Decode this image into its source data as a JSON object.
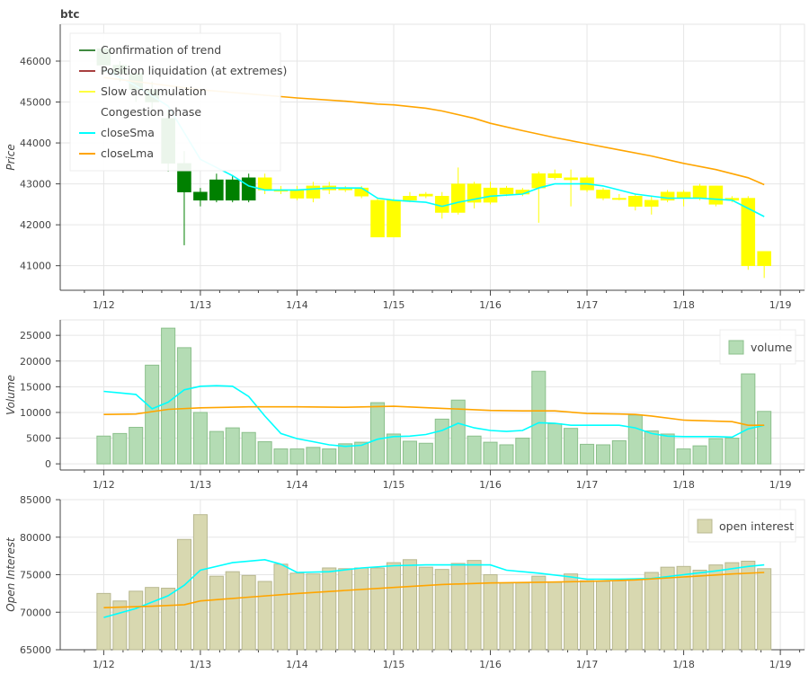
{
  "chart_data": [
    {
      "type": "candlestick",
      "title": "btc",
      "ylabel": "Price",
      "ylim": [
        40400,
        46900
      ],
      "yticks": [
        41000,
        42000,
        43000,
        44000,
        45000,
        46000
      ],
      "xlim": [
        11.55,
        19.25
      ],
      "xticks": [
        12,
        13,
        14,
        15,
        16,
        17,
        18,
        19
      ],
      "xtick_labels": [
        "1/12",
        "1/13",
        "1/14",
        "1/15",
        "1/16",
        "1/17",
        "1/18",
        "1/19"
      ],
      "legend": [
        "Confirmation of trend",
        "Position liquidation (at extremes)",
        "Slow accumulation",
        "Congestion phase",
        "closeSma",
        "closeLma"
      ],
      "legend_colors": [
        "#006400",
        "#8b0000",
        "#ffff00",
        "#ffffff",
        "#00ffff",
        "#ffa500"
      ],
      "legend_placement": "top-left",
      "candle_x": [
        12.0,
        12.167,
        12.333,
        12.5,
        12.667,
        12.833,
        13.0,
        13.167,
        13.333,
        13.5,
        13.667,
        13.833,
        14.0,
        14.167,
        14.333,
        14.5,
        14.667,
        14.833,
        15.0,
        15.167,
        15.333,
        15.5,
        15.667,
        15.833,
        16.0,
        16.167,
        16.333,
        16.5,
        16.667,
        16.833,
        17.0,
        17.167,
        17.333,
        17.5,
        17.667,
        17.833,
        18.0,
        18.167,
        18.333,
        18.5,
        18.667,
        18.833
      ],
      "candles": [
        {
          "open": 45900,
          "close": 46300,
          "high": 46400,
          "low": 45700,
          "phase": "Confirmation of trend"
        },
        {
          "open": 45700,
          "close": 45900,
          "high": 46000,
          "low": 45500,
          "phase": "Confirmation of trend"
        },
        {
          "open": 45300,
          "close": 45700,
          "high": 45800,
          "low": 45000,
          "phase": "Confirmation of trend"
        },
        {
          "open": 45000,
          "close": 45300,
          "high": 45500,
          "low": 44800,
          "phase": "Confirmation of trend"
        },
        {
          "open": 43500,
          "close": 44600,
          "high": 44800,
          "low": 43300,
          "phase": "Confirmation of trend"
        },
        {
          "open": 43500,
          "close": 42800,
          "high": 43800,
          "low": 41500,
          "phase": "Confirmation of trend"
        },
        {
          "open": 42800,
          "close": 42600,
          "high": 42900,
          "low": 42450,
          "phase": "Confirmation of trend"
        },
        {
          "open": 42600,
          "close": 43100,
          "high": 43250,
          "low": 42550,
          "phase": "Confirmation of trend"
        },
        {
          "open": 43100,
          "close": 42600,
          "high": 43200,
          "low": 42550,
          "phase": "Confirmation of trend"
        },
        {
          "open": 42600,
          "close": 43150,
          "high": 43250,
          "low": 42550,
          "phase": "Confirmation of trend"
        },
        {
          "open": 43150,
          "close": 42850,
          "high": 43250,
          "low": 42750,
          "phase": "Slow accumulation"
        },
        {
          "open": 42850,
          "close": 42850,
          "high": 42950,
          "low": 42750,
          "phase": "Slow accumulation"
        },
        {
          "open": 42850,
          "close": 42650,
          "high": 42950,
          "low": 42600,
          "phase": "Slow accumulation"
        },
        {
          "open": 42650,
          "close": 42950,
          "high": 43050,
          "low": 42550,
          "phase": "Slow accumulation"
        },
        {
          "open": 42950,
          "close": 42850,
          "high": 43050,
          "low": 42750,
          "phase": "Slow accumulation"
        },
        {
          "open": 42850,
          "close": 42900,
          "high": 42950,
          "low": 42800,
          "phase": "Slow accumulation"
        },
        {
          "open": 42900,
          "close": 42700,
          "high": 42950,
          "low": 42650,
          "phase": "Slow accumulation"
        },
        {
          "open": 42600,
          "close": 41700,
          "high": 42650,
          "low": 41700,
          "phase": "Slow accumulation"
        },
        {
          "open": 41700,
          "close": 42600,
          "high": 42650,
          "low": 41700,
          "phase": "Slow accumulation"
        },
        {
          "open": 42600,
          "close": 42700,
          "high": 42800,
          "low": 42550,
          "phase": "Slow accumulation"
        },
        {
          "open": 42700,
          "close": 42750,
          "high": 42800,
          "low": 42650,
          "phase": "Slow accumulation"
        },
        {
          "open": 42700,
          "close": 42300,
          "high": 42800,
          "low": 42150,
          "phase": "Slow accumulation"
        },
        {
          "open": 42300,
          "close": 43000,
          "high": 43400,
          "low": 42250,
          "phase": "Slow accumulation"
        },
        {
          "open": 43000,
          "close": 42550,
          "high": 43050,
          "low": 42400,
          "phase": "Slow accumulation"
        },
        {
          "open": 42550,
          "close": 42900,
          "high": 43050,
          "low": 42500,
          "phase": "Slow accumulation"
        },
        {
          "open": 42900,
          "close": 42750,
          "high": 42950,
          "low": 42700,
          "phase": "Slow accumulation"
        },
        {
          "open": 42750,
          "close": 42850,
          "high": 42900,
          "low": 42700,
          "phase": "Slow accumulation"
        },
        {
          "open": 42900,
          "close": 43250,
          "high": 43300,
          "low": 42050,
          "phase": "Slow accumulation"
        },
        {
          "open": 43250,
          "close": 43150,
          "high": 43350,
          "low": 43100,
          "phase": "Slow accumulation"
        },
        {
          "open": 43150,
          "close": 43100,
          "high": 43350,
          "low": 42450,
          "phase": "Slow accumulation"
        },
        {
          "open": 43150,
          "close": 42850,
          "high": 43200,
          "low": 42800,
          "phase": "Slow accumulation"
        },
        {
          "open": 42850,
          "close": 42650,
          "high": 42900,
          "low": 42600,
          "phase": "Slow accumulation"
        },
        {
          "open": 42650,
          "close": 42650,
          "high": 42750,
          "low": 42600,
          "phase": "Slow accumulation"
        },
        {
          "open": 42700,
          "close": 42450,
          "high": 42750,
          "low": 42350,
          "phase": "Slow accumulation"
        },
        {
          "open": 42450,
          "close": 42600,
          "high": 42700,
          "low": 42250,
          "phase": "Slow accumulation"
        },
        {
          "open": 42600,
          "close": 42800,
          "high": 42850,
          "low": 42550,
          "phase": "Slow accumulation"
        },
        {
          "open": 42800,
          "close": 42650,
          "high": 42850,
          "low": 42450,
          "phase": "Slow accumulation"
        },
        {
          "open": 42650,
          "close": 42950,
          "high": 43000,
          "low": 42600,
          "phase": "Slow accumulation"
        },
        {
          "open": 42950,
          "close": 42500,
          "high": 42950,
          "low": 42450,
          "phase": "Slow accumulation"
        },
        {
          "open": 42600,
          "close": 42650,
          "high": 42700,
          "low": 42550,
          "phase": "Slow accumulation"
        },
        {
          "open": 42650,
          "close": 41000,
          "high": 42700,
          "low": 40900,
          "phase": "Slow accumulation"
        },
        {
          "open": 41350,
          "close": 41000,
          "high": 41350,
          "low": 40700,
          "phase": "Slow accumulation"
        }
      ],
      "series": [
        {
          "name": "closeSma",
          "color": "#00ffff",
          "x": [
            12.0,
            12.333,
            12.667,
            13.0,
            13.333,
            13.5,
            13.667,
            14.0,
            14.333,
            14.5,
            14.667,
            14.833,
            15.0,
            15.333,
            15.5,
            15.667,
            16.0,
            16.333,
            16.5,
            16.667,
            16.833,
            17.0,
            17.167,
            17.5,
            17.833,
            18.167,
            18.5,
            18.833
          ],
          "y": [
            45800,
            45400,
            44900,
            43600,
            43200,
            42950,
            42850,
            42850,
            42900,
            42900,
            42900,
            42650,
            42600,
            42550,
            42450,
            42550,
            42700,
            42750,
            42900,
            43000,
            43000,
            43000,
            42950,
            42750,
            42650,
            42650,
            42600,
            42200
          ]
        },
        {
          "name": "closeLma",
          "color": "#ffa500",
          "x": [
            12.0,
            12.5,
            13.0,
            13.5,
            14.0,
            14.5,
            14.833,
            15.0,
            15.333,
            15.5,
            15.833,
            16.0,
            16.333,
            16.667,
            17.0,
            17.333,
            17.667,
            18.0,
            18.333,
            18.667,
            18.833
          ],
          "y": [
            45600,
            45450,
            45300,
            45200,
            45100,
            45020,
            44950,
            44930,
            44850,
            44780,
            44600,
            44480,
            44300,
            44130,
            43980,
            43830,
            43680,
            43500,
            43350,
            43150,
            42980
          ]
        }
      ]
    },
    {
      "type": "bar",
      "ylabel": "Volume",
      "ylim": [
        -1200,
        28000
      ],
      "yticks": [
        0,
        5000,
        10000,
        15000,
        20000,
        25000
      ],
      "xlim": [
        11.55,
        19.25
      ],
      "xticks": [
        12,
        13,
        14,
        15,
        16,
        17,
        18,
        19
      ],
      "xtick_labels": [
        "1/12",
        "1/13",
        "1/14",
        "1/15",
        "1/16",
        "1/17",
        "1/18",
        "1/19"
      ],
      "legend": [
        "volume"
      ],
      "legend_placement": "top-right",
      "x": [
        12.0,
        12.167,
        12.333,
        12.5,
        12.667,
        12.833,
        13.0,
        13.167,
        13.333,
        13.5,
        13.667,
        13.833,
        14.0,
        14.167,
        14.333,
        14.5,
        14.667,
        14.833,
        15.0,
        15.167,
        15.333,
        15.5,
        15.667,
        15.833,
        16.0,
        16.167,
        16.333,
        16.5,
        16.667,
        16.833,
        17.0,
        17.167,
        17.333,
        17.5,
        17.667,
        17.833,
        18.0,
        18.167,
        18.333,
        18.5,
        18.667,
        18.833
      ],
      "values": [
        5400,
        5900,
        7100,
        19200,
        26400,
        22600,
        10000,
        6300,
        7000,
        6100,
        4300,
        2900,
        2900,
        3200,
        2900,
        3900,
        4200,
        11900,
        5800,
        4400,
        4000,
        8700,
        12400,
        5400,
        4200,
        3700,
        5000,
        18000,
        7800,
        6900,
        3800,
        3700,
        4500,
        9500,
        6400,
        5800,
        2900,
        3500,
        4900,
        5000,
        17500,
        10200
      ],
      "series": [
        {
          "name": "closeSma",
          "color": "#00ffff",
          "x": [
            12.0,
            12.167,
            12.333,
            12.5,
            12.667,
            12.833,
            13.0,
            13.167,
            13.333,
            13.5,
            13.667,
            13.833,
            14.0,
            14.167,
            14.333,
            14.5,
            14.667,
            14.833,
            15.0,
            15.167,
            15.333,
            15.5,
            15.667,
            15.833,
            16.0,
            16.167,
            16.333,
            16.5,
            16.667,
            16.833,
            17.0,
            17.167,
            17.333,
            17.5,
            17.667,
            17.833,
            18.0,
            18.167,
            18.333,
            18.5,
            18.667,
            18.833
          ],
          "y": [
            14100,
            13800,
            13500,
            10700,
            12000,
            14400,
            15100,
            15200,
            15100,
            13100,
            9300,
            5900,
            4900,
            4300,
            3700,
            3400,
            3600,
            4800,
            5300,
            5400,
            5700,
            6500,
            7900,
            7000,
            6500,
            6300,
            6500,
            8000,
            7900,
            7500,
            7500,
            7500,
            7500,
            7000,
            5900,
            5400,
            5300,
            5300,
            5300,
            5200,
            6800,
            7500
          ]
        },
        {
          "name": "closeLma",
          "color": "#ffa500",
          "x": [
            12.0,
            12.333,
            12.667,
            13.0,
            13.5,
            14.0,
            14.5,
            15.0,
            15.5,
            16.0,
            16.333,
            16.667,
            17.0,
            17.333,
            17.5,
            17.667,
            18.0,
            18.5,
            18.667,
            18.833
          ],
          "y": [
            9600,
            9700,
            10600,
            10900,
            11100,
            11100,
            11000,
            11200,
            10800,
            10400,
            10300,
            10300,
            9800,
            9700,
            9600,
            9300,
            8500,
            8200,
            7500,
            7500
          ]
        }
      ]
    },
    {
      "type": "bar",
      "ylabel": "Open Interest",
      "ylim": [
        65000,
        85000
      ],
      "yticks": [
        65000,
        70000,
        75000,
        80000,
        85000
      ],
      "xlim": [
        11.55,
        19.25
      ],
      "xticks": [
        12,
        13,
        14,
        15,
        16,
        17,
        18,
        19
      ],
      "xtick_labels": [
        "1/12",
        "1/13",
        "1/14",
        "1/15",
        "1/16",
        "1/17",
        "1/18",
        "1/19"
      ],
      "legend": [
        "open interest"
      ],
      "legend_placement": "top-right",
      "x": [
        12.0,
        12.167,
        12.333,
        12.5,
        12.667,
        12.833,
        13.0,
        13.167,
        13.333,
        13.5,
        13.667,
        13.833,
        14.0,
        14.167,
        14.333,
        14.5,
        14.667,
        14.833,
        15.0,
        15.167,
        15.333,
        15.5,
        15.667,
        15.833,
        16.0,
        16.167,
        16.333,
        16.5,
        16.667,
        16.833,
        17.0,
        17.167,
        17.333,
        17.5,
        17.667,
        17.833,
        18.0,
        18.167,
        18.333,
        18.5,
        18.667,
        18.833
      ],
      "values": [
        72500,
        71500,
        72800,
        73300,
        73200,
        79700,
        83000,
        74800,
        75400,
        74900,
        74100,
        76400,
        75200,
        75100,
        75900,
        75800,
        75900,
        75900,
        76600,
        77000,
        76000,
        75700,
        76500,
        76900,
        75000,
        73900,
        73900,
        74800,
        74000,
        75100,
        74200,
        74100,
        74200,
        74400,
        75300,
        76000,
        76100,
        75600,
        76300,
        76600,
        76800,
        75800
      ],
      "series": [
        {
          "name": "closeSma",
          "color": "#00ffff",
          "x": [
            12.0,
            12.333,
            12.667,
            12.833,
            13.0,
            13.333,
            13.667,
            13.833,
            14.0,
            14.333,
            14.667,
            15.0,
            15.333,
            15.667,
            16.0,
            16.167,
            16.5,
            16.833,
            17.0,
            17.333,
            17.667,
            18.0,
            18.333,
            18.667,
            18.833
          ],
          "y": [
            69300,
            70500,
            72200,
            73600,
            75600,
            76600,
            77000,
            76400,
            75300,
            75400,
            75900,
            76200,
            76300,
            76300,
            76300,
            75600,
            75200,
            74700,
            74400,
            74400,
            74500,
            75000,
            75500,
            76100,
            76300
          ]
        },
        {
          "name": "closeLma",
          "color": "#ffa500",
          "x": [
            12.0,
            12.5,
            12.833,
            13.0,
            13.5,
            14.0,
            14.5,
            15.0,
            15.5,
            16.0,
            16.5,
            17.0,
            17.5,
            18.0,
            18.5,
            18.833
          ],
          "y": [
            70600,
            70800,
            71000,
            71500,
            72000,
            72500,
            72900,
            73300,
            73700,
            73900,
            74000,
            74100,
            74300,
            74700,
            75100,
            75300
          ]
        }
      ]
    }
  ]
}
